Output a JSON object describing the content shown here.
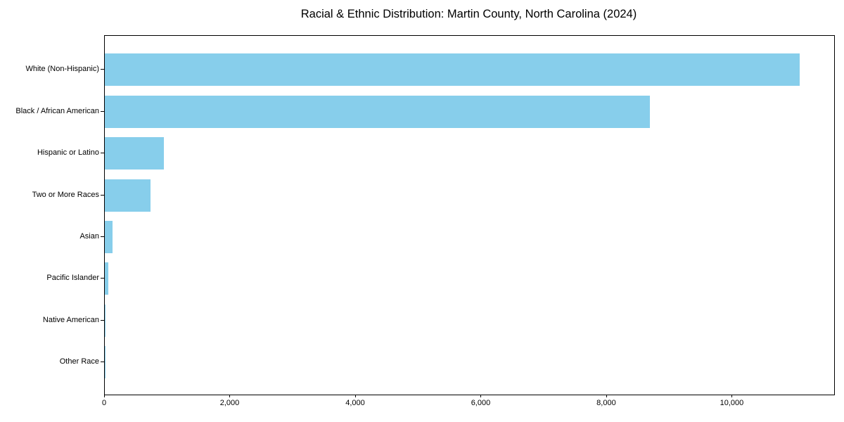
{
  "title": "Racial & Ethnic Distribution: Martin County, North Carolina (2024)",
  "chart_data": {
    "type": "bar",
    "orientation": "horizontal",
    "title": "Racial & Ethnic Distribution: Martin County, North Carolina (2024)",
    "xlabel": "",
    "ylabel": "",
    "categories": [
      "White (Non-Hispanic)",
      "Black / African American",
      "Hispanic or Latino",
      "Two or More Races",
      "Asian",
      "Pacific Islander",
      "Native American",
      "Other Race"
    ],
    "values": [
      11070,
      8680,
      945,
      730,
      125,
      55,
      15,
      8
    ],
    "xlim": [
      0,
      11620
    ],
    "x_ticks": [
      0,
      2000,
      4000,
      6000,
      8000,
      10000
    ],
    "x_tick_labels": [
      "0",
      "2,000",
      "4,000",
      "6,000",
      "8,000",
      "10,000"
    ],
    "bar_color": "#87ceeb",
    "axis_color": "#000000",
    "background_color": "#ffffff",
    "grid": false,
    "legend": null
  }
}
